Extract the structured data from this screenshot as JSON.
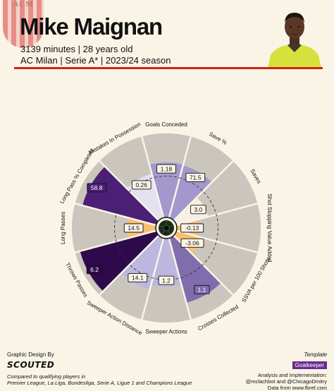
{
  "header": {
    "crest_text": "ACM",
    "player_name": "Mike Maignan",
    "line1": "3139 minutes | 28 years old",
    "line2": "AC Milan | Serie A* | 2023/24 season"
  },
  "chart_data": {
    "type": "pizza",
    "max_scale": 100,
    "unit": "percentile",
    "categories": [
      {
        "label": "Goals Conceded",
        "value": "1.18",
        "percentile": 66,
        "color": "#a398cc"
      },
      {
        "label": "Save %",
        "value": "71.5",
        "percentile": 65,
        "color": "#a398cc"
      },
      {
        "label": "Saves",
        "value": "3.0",
        "percentile": 40,
        "color": "#f6efe4"
      },
      {
        "label": "Shot Stopping Value Added",
        "value": "-0.13",
        "percentile": 27,
        "color": "#f9c06f"
      },
      {
        "label": "SSVA per 100 Shots",
        "value": "-3.06",
        "percentile": 32,
        "color": "#f9c06f"
      },
      {
        "label": "Crosses Collected",
        "value": "1.1",
        "percentile": 80,
        "color": "#7f6dad"
      },
      {
        "label": "Sweeper Actions",
        "value": "1.2",
        "percentile": 58,
        "color": "#bcb7df"
      },
      {
        "label": "Sweeper Action Distance",
        "value": "14.1",
        "percentile": 64,
        "color": "#bcb7df"
      },
      {
        "label": "Throws Passes",
        "value": "6.2",
        "percentile": 94,
        "color": "#2e0a4c"
      },
      {
        "label": "Long Passes",
        "value": "14.5",
        "percentile": 35,
        "color": "#f9c06f"
      },
      {
        "label": "Long Pass % Completed",
        "value": "58.8",
        "percentile": 91,
        "color": "#4c1f76"
      },
      {
        "label": "Mistakes In Possession",
        "value": "0.26",
        "percentile": 55,
        "color": "#e3e0ef"
      }
    ],
    "reference_percentile": 50,
    "background_color": "#cbc6bd",
    "divider_color": "#faf4e6"
  },
  "footer": {
    "design_by": "Graphic Design By",
    "brand": "SCOUTED",
    "compare_line1": "Compared to qualifying players in",
    "compare_line2": "Premier League, La Liga, Bundesliga, Serie A, Ligue 1 and Champions League",
    "template_label": "Template",
    "template_value": "Goalkeeper",
    "credits_line1": "Analysis and Implementation:",
    "credits_line2": "@mclachbot and @ChicagoDmitry",
    "credits_line3": "Data from www.fbref.com"
  }
}
